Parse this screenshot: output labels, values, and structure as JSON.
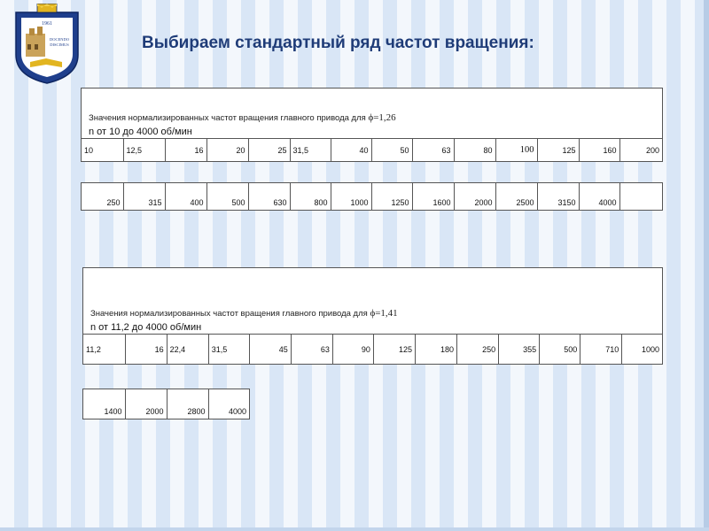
{
  "logo": {
    "year": "1961",
    "motto_line1": "DOCENDO",
    "motto_line2": "DISCIMUS"
  },
  "title": "Выбираем стандартный ряд частот вращения:",
  "table1": {
    "caption_text": "Значения нормализированных частот вращения главного привода для ",
    "phi": "ϕ=1,26",
    "range": "n от 10 до 4000 об/мин",
    "row1": [
      "10",
      "12,5",
      "16",
      "20",
      "25",
      "31,5",
      "40",
      "50",
      "63",
      "80",
      "100",
      "125",
      "160",
      "200"
    ],
    "row2": [
      "250",
      "315",
      "400",
      "500",
      "630",
      "800",
      "1000",
      "1250",
      "1600",
      "2000",
      "2500",
      "3150",
      "4000",
      ""
    ]
  },
  "table2": {
    "caption_text": "Значения нормализированных частот вращения главного привода для ",
    "phi": "ϕ=1,41",
    "range": "n от 11,2 до 4000 об/мин",
    "row1": [
      "11,2",
      "16",
      "22,4",
      "31,5",
      "45",
      "63",
      "90",
      "125",
      "180",
      "250",
      "355",
      "500",
      "710",
      "1000"
    ],
    "row2": [
      "1400",
      "2000",
      "2800",
      "4000"
    ]
  }
}
